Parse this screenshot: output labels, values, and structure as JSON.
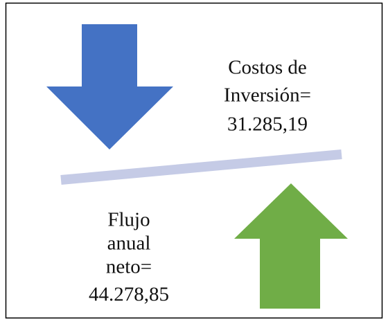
{
  "investment": {
    "lines": [
      "Costos de",
      "Inversión="
    ],
    "value": "31.285,19"
  },
  "cash_flow": {
    "lines": [
      "Flujo",
      "anual",
      "neto="
    ],
    "value": "44.278,85"
  }
}
